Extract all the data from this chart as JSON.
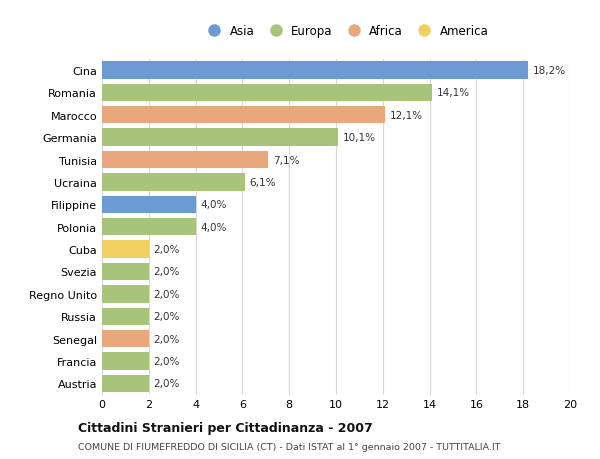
{
  "countries": [
    "Cina",
    "Romania",
    "Marocco",
    "Germania",
    "Tunisia",
    "Ucraina",
    "Filippine",
    "Polonia",
    "Cuba",
    "Svezia",
    "Regno Unito",
    "Russia",
    "Senegal",
    "Francia",
    "Austria"
  ],
  "values": [
    18.2,
    14.1,
    12.1,
    10.1,
    7.1,
    6.1,
    4.0,
    4.0,
    2.0,
    2.0,
    2.0,
    2.0,
    2.0,
    2.0,
    2.0
  ],
  "labels": [
    "18,2%",
    "14,1%",
    "12,1%",
    "10,1%",
    "7,1%",
    "6,1%",
    "4,0%",
    "4,0%",
    "2,0%",
    "2,0%",
    "2,0%",
    "2,0%",
    "2,0%",
    "2,0%",
    "2,0%"
  ],
  "continents": [
    "Asia",
    "Europa",
    "Africa",
    "Europa",
    "Africa",
    "Europa",
    "Asia",
    "Europa",
    "America",
    "Europa",
    "Europa",
    "Europa",
    "Africa",
    "Europa",
    "Europa"
  ],
  "colors": {
    "Asia": "#6b9bd2",
    "Europa": "#a8c47a",
    "Africa": "#e8a87c",
    "America": "#f0d060"
  },
  "legend_order": [
    "Asia",
    "Europa",
    "Africa",
    "America"
  ],
  "title": "Cittadini Stranieri per Cittadinanza - 2007",
  "subtitle": "COMUNE DI FIUMEFREDDO DI SICILIA (CT) - Dati ISTAT al 1° gennaio 2007 - TUTTITALIA.IT",
  "xlim": [
    0,
    20
  ],
  "xticks": [
    0,
    2,
    4,
    6,
    8,
    10,
    12,
    14,
    16,
    18,
    20
  ],
  "bg_color": "#ffffff",
  "grid_color": "#d8d8d8"
}
